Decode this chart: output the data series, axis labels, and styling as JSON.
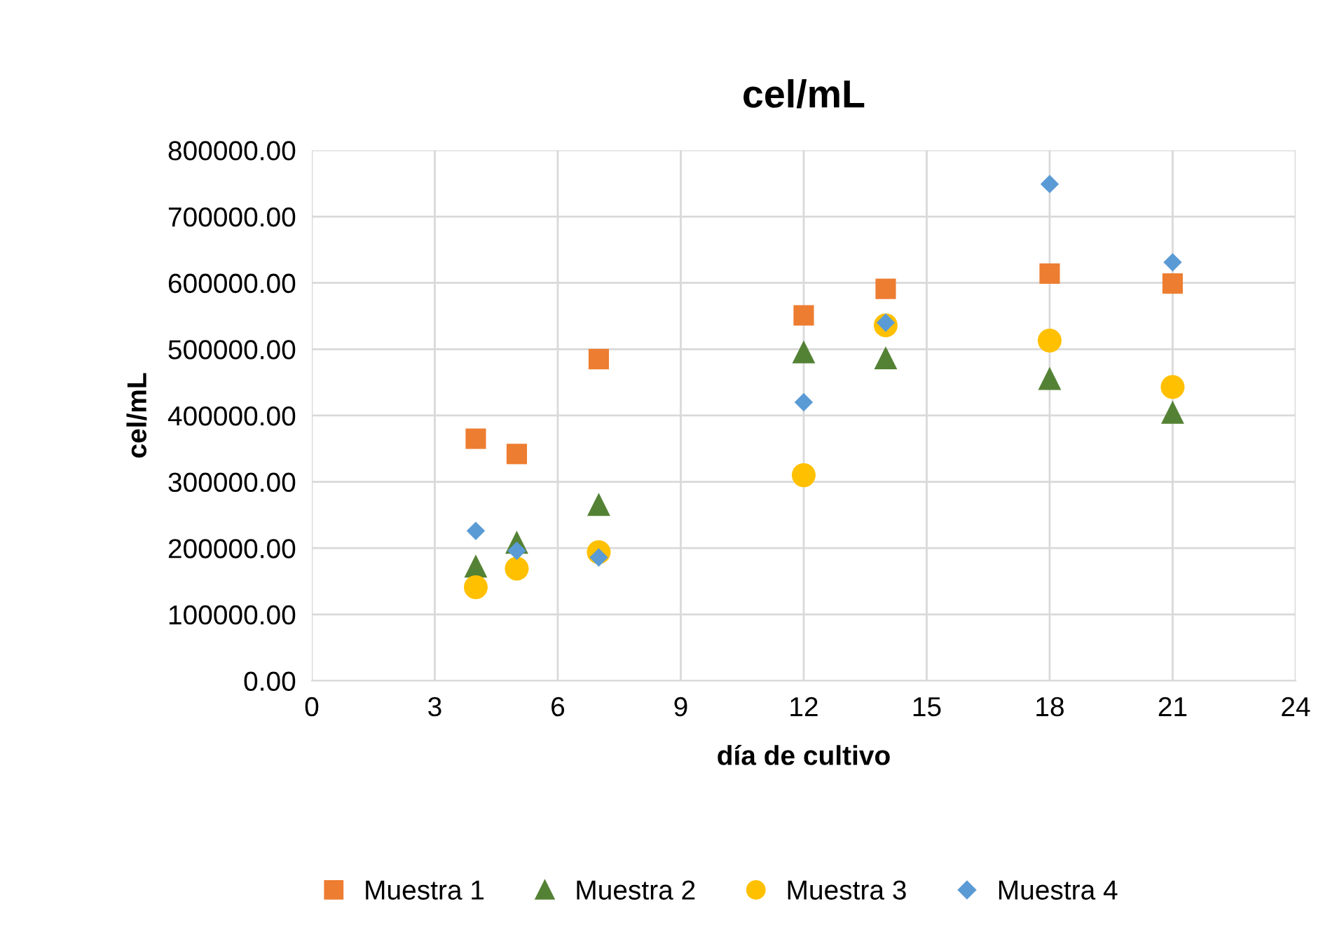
{
  "chart_data": {
    "type": "scatter",
    "title": "cel/mL",
    "xlabel": "día de cultivo",
    "ylabel": "cel/mL",
    "x": [
      4,
      5,
      7,
      12,
      14,
      18,
      21
    ],
    "series": [
      {
        "name": "Muestra 1",
        "color": "#ed7d31",
        "marker": "square",
        "values": [
          365000,
          342000,
          485000,
          551000,
          591000,
          614000,
          599000
        ]
      },
      {
        "name": "Muestra 2",
        "color": "#548235",
        "marker": "triangle",
        "values": [
          173000,
          209000,
          266000,
          496000,
          487000,
          456000,
          405000
        ]
      },
      {
        "name": "Muestra 3",
        "color": "#ffc000",
        "marker": "circle",
        "values": [
          141000,
          169000,
          194000,
          310000,
          536000,
          513000,
          443000
        ]
      },
      {
        "name": "Muestra 4",
        "color": "#5b9bd5",
        "marker": "diamond",
        "values": [
          226000,
          196000,
          186000,
          420000,
          540000,
          749000,
          631000
        ]
      }
    ],
    "xlim": [
      0,
      24
    ],
    "xticks": [
      0,
      3,
      6,
      9,
      12,
      15,
      18,
      21,
      24
    ],
    "ylim": [
      0,
      800000
    ],
    "yticks": [
      {
        "value": 0,
        "label": "0.00"
      },
      {
        "value": 100000,
        "label": "100000.00"
      },
      {
        "value": 200000,
        "label": "200000.00"
      },
      {
        "value": 300000,
        "label": "300000.00"
      },
      {
        "value": 400000,
        "label": "400000.00"
      },
      {
        "value": 500000,
        "label": "500000.00"
      },
      {
        "value": 600000,
        "label": "600000.00"
      },
      {
        "value": 700000,
        "label": "700000.00"
      },
      {
        "value": 800000,
        "label": "800000.00"
      }
    ],
    "grid": true,
    "legend": "bottom"
  }
}
